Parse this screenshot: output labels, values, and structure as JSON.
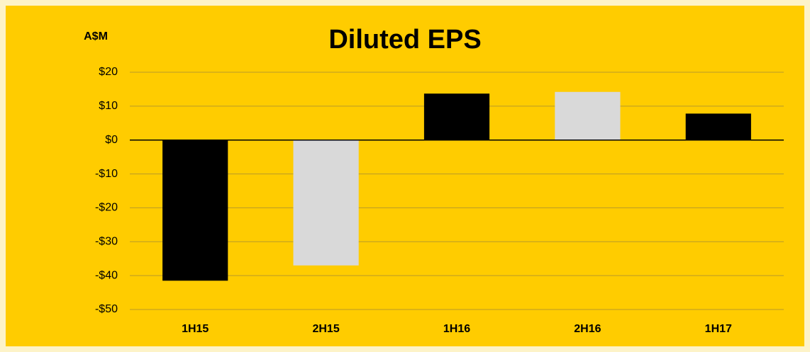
{
  "chart_data": {
    "type": "bar",
    "title": "Diluted EPS",
    "y_label": "A$M",
    "categories": [
      "1H15",
      "2H15",
      "1H16",
      "2H16",
      "1H17"
    ],
    "values": [
      -41.5,
      -37,
      13.7,
      14.2,
      7.8
    ],
    "colors": [
      "#000000",
      "#d9d9d9",
      "#000000",
      "#d9d9d9",
      "#000000"
    ],
    "ylim": [
      -50,
      20
    ],
    "yticks": [
      {
        "value": -50,
        "label": "-$50"
      },
      {
        "value": -40,
        "label": "-$40"
      },
      {
        "value": -30,
        "label": "-$30"
      },
      {
        "value": -20,
        "label": "-$20"
      },
      {
        "value": -10,
        "label": "-$10"
      },
      {
        "value": 0,
        "label": "$0"
      },
      {
        "value": 10,
        "label": "$10"
      },
      {
        "value": 20,
        "label": "$20"
      }
    ],
    "grid": true
  }
}
